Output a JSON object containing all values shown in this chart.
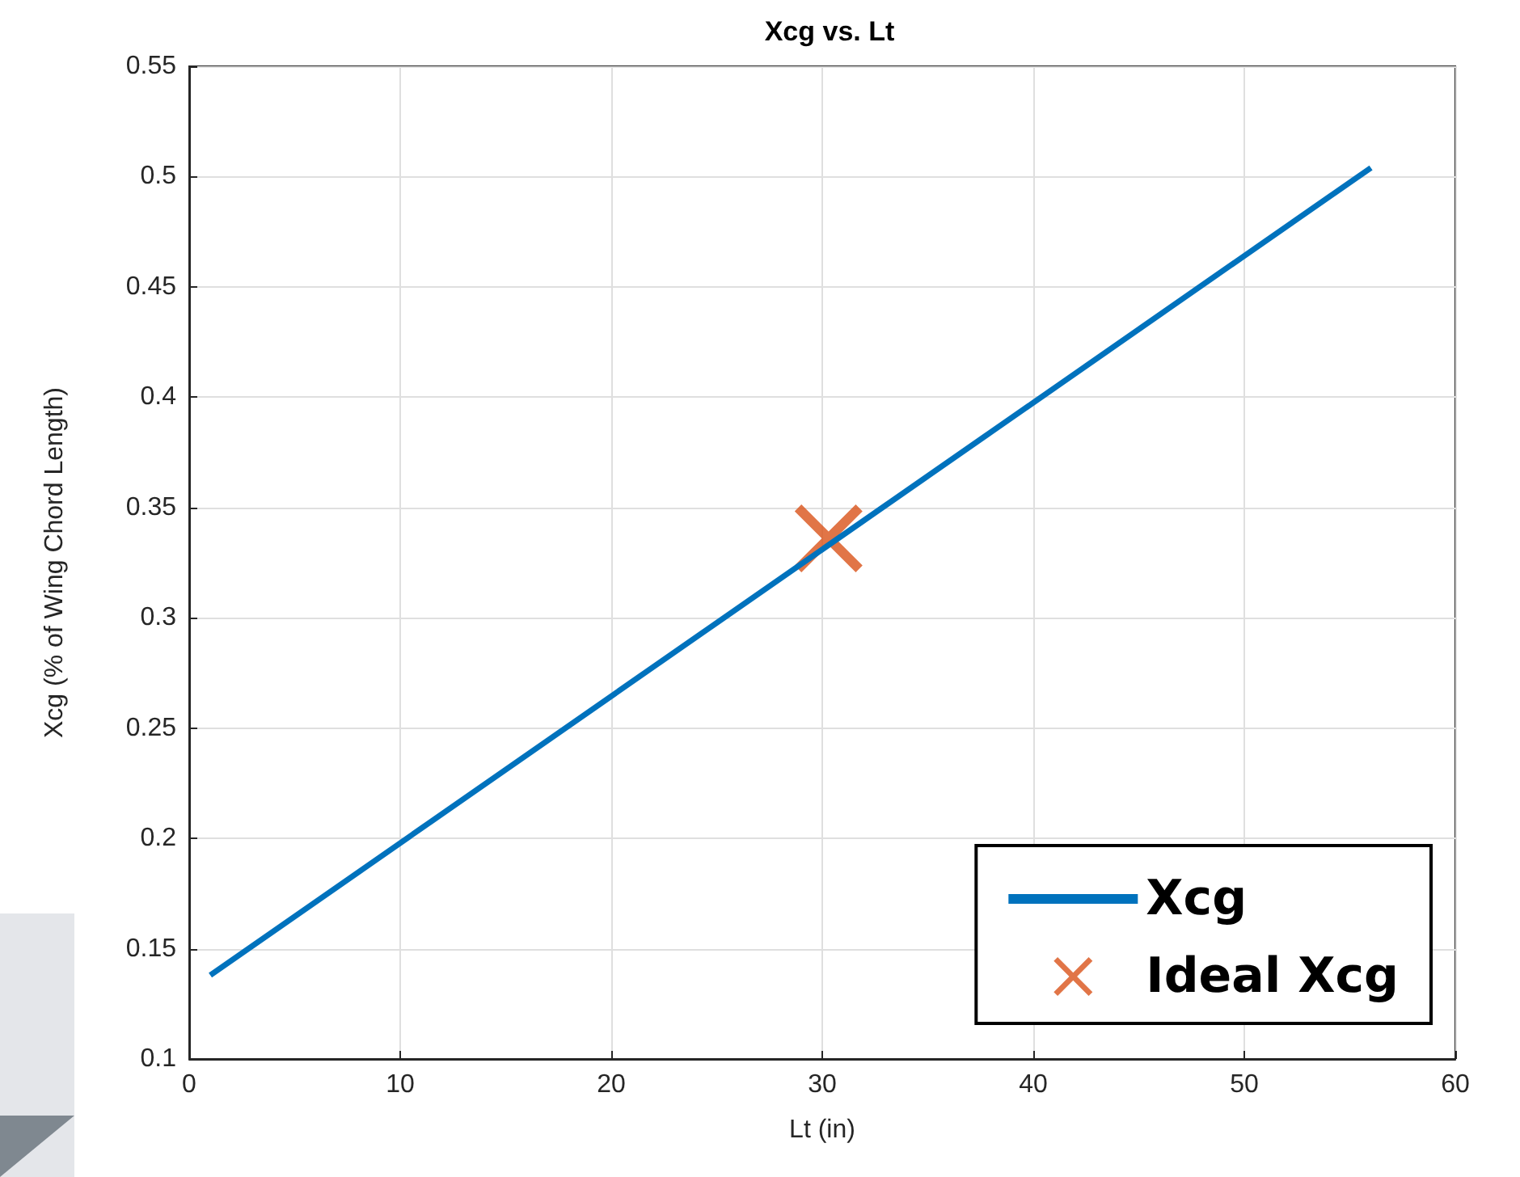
{
  "chart_data": {
    "type": "line",
    "title": "Xcg vs. Lt",
    "xlabel": "Lt (in)",
    "ylabel": "Xcg (% of Wing Chord Length)",
    "xlim": [
      0,
      60
    ],
    "xticks": [
      0,
      10,
      20,
      30,
      40,
      50,
      60
    ],
    "ylim": [
      0.1,
      0.55
    ],
    "yticks": [
      0.1,
      0.15,
      0.2,
      0.25,
      0.3,
      0.35,
      0.4,
      0.45,
      0.5,
      0.55
    ],
    "grid": true,
    "legend": "bottom right",
    "series": [
      {
        "name": "Xcg",
        "color": "#0072bd",
        "x": [
          1,
          56
        ],
        "values": [
          0.138,
          0.504
        ],
        "marker": "none",
        "line_style": "solid"
      },
      {
        "name": "Ideal Xcg",
        "type": "scatter",
        "color": "#d95319",
        "x": [
          30.3
        ],
        "values": [
          0.336
        ],
        "marker": "cross"
      }
    ]
  }
}
